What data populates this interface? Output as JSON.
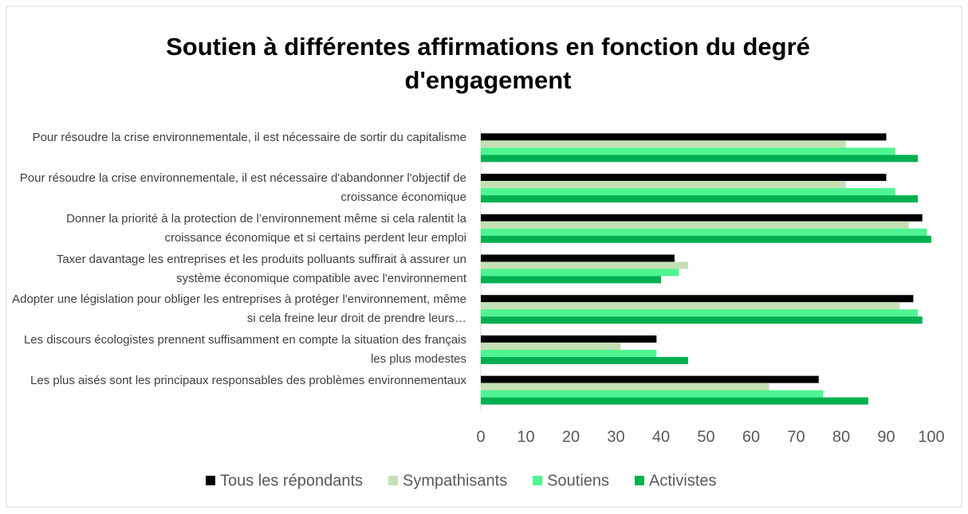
{
  "chart_data": {
    "type": "hbar",
    "title": "Soutien à différentes affirmations en fonction du degré d'engagement",
    "categories": [
      "Pour résoudre la crise environnementale, il est nécessaire de sortir du capitalisme",
      "Pour résoudre la crise environnementale, il est nécessaire d'abandonner l'objectif de croissance économique",
      "Donner la priorité à la protection de l’environnement même si cela ralentit la croissance économique et si certains perdent leur emploi",
      "Taxer davantage les entreprises et les produits polluants suffirait à assurer un système économique compatible avec l'environnement",
      "Adopter une législation pour obliger les entreprises à protéger l'environnement, même si cela freine leur droit de prendre leurs…",
      "Les discours écologistes prennent suffisamment en compte la situation des français les plus modestes",
      "Les plus aisés sont les principaux responsables des problèmes environnementaux"
    ],
    "series": [
      {
        "name": "Tous les répondants",
        "color": "#000000",
        "values": [
          90,
          90,
          98,
          43,
          96,
          39,
          75
        ]
      },
      {
        "name": "Sympathisants",
        "color": "#c5e0b4",
        "values": [
          81,
          81,
          95,
          46,
          93,
          31,
          64
        ]
      },
      {
        "name": "Soutiens",
        "color": "#4ff592",
        "values": [
          92,
          92,
          99,
          44,
          97,
          39,
          76
        ]
      },
      {
        "name": "Activistes",
        "color": "#00b050",
        "values": [
          97,
          97,
          100,
          40,
          98,
          46,
          86
        ]
      }
    ],
    "xlim": [
      0,
      100
    ],
    "xticks": [
      0,
      10,
      20,
      30,
      40,
      50,
      60,
      70,
      80,
      90,
      100
    ],
    "legend": "bottom"
  }
}
